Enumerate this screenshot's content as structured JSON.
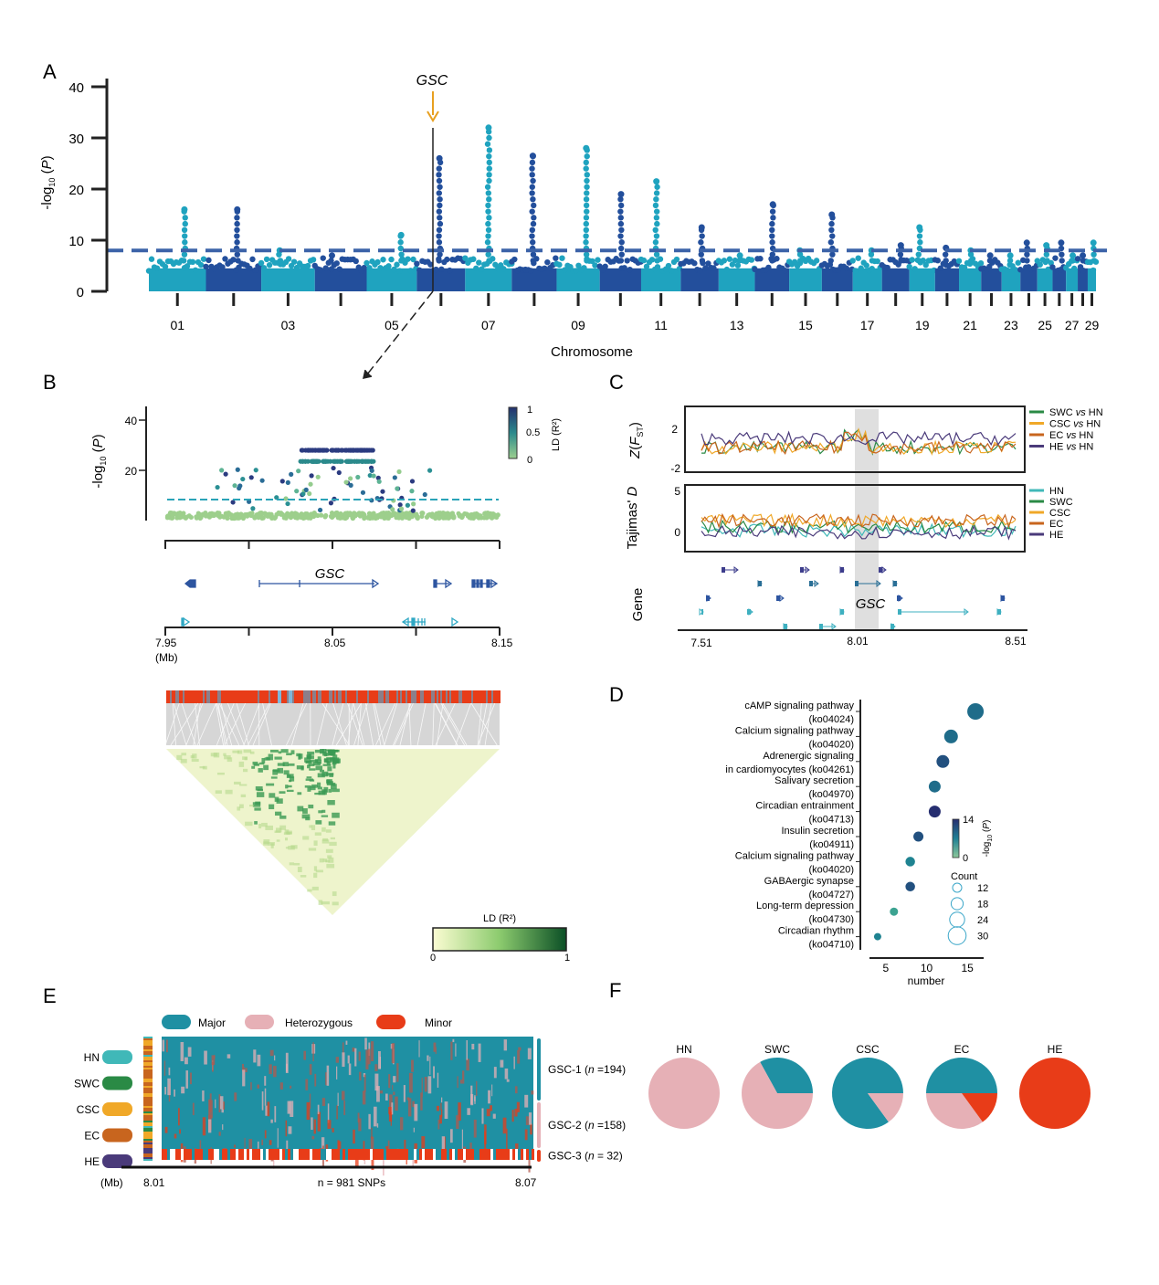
{
  "panel_labels": {
    "a": "A",
    "b": "B",
    "c": "C",
    "d": "D",
    "e": "E",
    "f": "F"
  },
  "colors": {
    "chr_light": "#1fa3bf",
    "chr_dark": "#234f9c",
    "threshold": "#3c63a8",
    "gsc_arrow": "#e8a020",
    "major": "#1f90a3",
    "heterozygous": "#e6b0b6",
    "minor": "#e83c18",
    "HN": "#40b8b8",
    "SWC": "#2a8a45",
    "CSC": "#f0a828",
    "EC": "#c8651e",
    "HE": "#4a3a7a"
  },
  "chart_data": [
    {
      "id": "A",
      "type": "scatter",
      "title": "",
      "xlabel": "Chromosome",
      "ylabel": "-log10 (P)",
      "ylim": [
        0,
        40
      ],
      "yticks": [
        0,
        10,
        20,
        30,
        40
      ],
      "xtick_labels": [
        "01",
        "03",
        "05",
        "07",
        "09",
        "11",
        "13",
        "15",
        "17",
        "19",
        "21",
        "23",
        "25",
        "27",
        "29"
      ],
      "chromosomes": 29,
      "threshold": 8,
      "annotation": "GSC",
      "peaks": [
        {
          "chr": 1,
          "max": 16
        },
        {
          "chr": 2,
          "max": 16
        },
        {
          "chr": 3,
          "max": 8
        },
        {
          "chr": 4,
          "max": 7
        },
        {
          "chr": 5,
          "max": 11
        },
        {
          "chr": 6,
          "max": 26
        },
        {
          "chr": 7,
          "max": 32
        },
        {
          "chr": 8,
          "max": 26.5
        },
        {
          "chr": 9,
          "max": 28
        },
        {
          "chr": 10,
          "max": 19
        },
        {
          "chr": 11,
          "max": 21.5
        },
        {
          "chr": 12,
          "max": 12.5
        },
        {
          "chr": 13,
          "max": 7
        },
        {
          "chr": 14,
          "max": 17
        },
        {
          "chr": 15,
          "max": 8
        },
        {
          "chr": 16,
          "max": 15
        },
        {
          "chr": 17,
          "max": 8
        },
        {
          "chr": 18,
          "max": 9
        },
        {
          "chr": 19,
          "max": 12.5
        },
        {
          "chr": 20,
          "max": 8.5
        },
        {
          "chr": 21,
          "max": 8
        },
        {
          "chr": 22,
          "max": 7
        },
        {
          "chr": 23,
          "max": 7
        },
        {
          "chr": 24,
          "max": 9.5
        },
        {
          "chr": 25,
          "max": 9
        },
        {
          "chr": 26,
          "max": 9.5
        },
        {
          "chr": 27,
          "max": 7
        },
        {
          "chr": 28,
          "max": 7
        },
        {
          "chr": 29,
          "max": 9.5
        }
      ]
    },
    {
      "id": "B",
      "type": "scatter",
      "ylabel": "-log10 (P)",
      "xlabel": "(Mb)",
      "xlim": [
        7.95,
        8.15
      ],
      "ylim": [
        0,
        45
      ],
      "yticks": [
        20,
        40
      ],
      "xtick_labels": [
        "7.95",
        "8.05",
        "8.15"
      ],
      "threshold": 8,
      "colorbar": {
        "label": "LD (R²)",
        "ticks": [
          "1",
          "0.5",
          "0"
        ]
      },
      "gene_label": "GSC",
      "ld_legend": {
        "label": "LD (R²)",
        "min": "0",
        "max": "1"
      }
    },
    {
      "id": "C",
      "type": "line",
      "panels": [
        {
          "ylabel": "Z(FST)",
          "yticks": [
            "2",
            "-2"
          ],
          "legend": [
            "SWC vs HN",
            "CSC vs HN",
            "EC vs HN",
            "HE vs HN"
          ]
        },
        {
          "ylabel": "Tajimas' D",
          "yticks": [
            "5",
            "0"
          ],
          "legend": [
            "HN",
            "SWC",
            "CSC",
            "EC",
            "HE"
          ]
        },
        {
          "ylabel": "Gene",
          "gene_label": "GSC"
        }
      ],
      "xlim": [
        7.51,
        8.51
      ],
      "xtick_labels": [
        "7.51",
        "8.01",
        "8.51"
      ],
      "highlight": [
        8.01,
        8.08
      ]
    },
    {
      "id": "D",
      "type": "scatter",
      "xlabel": "number",
      "xticks": [
        5,
        10,
        15
      ],
      "categories": [
        "cAMP signaling pathway (ko04024)",
        "Calcium signaling pathway (ko04020)",
        "Adrenergic signaling in cardiomyocytes (ko04261)",
        "Salivary secretion (ko04970)",
        "Circadian entrainment (ko04713)",
        "Insulin secretion (ko04911)",
        "Calcium signaling pathway (ko04020)",
        "GABAergic synapse (ko04727)",
        "Long-term depression (ko04730)",
        "Circadian rhythm (ko04710)"
      ],
      "label_lines": [
        [
          "cAMP signaling pathway",
          "(ko04024)"
        ],
        [
          "Calcium signaling pathway",
          "(ko04020)"
        ],
        [
          "Adrenergic signaling",
          "in cardiomyocytes (ko04261)"
        ],
        [
          "Salivary secretion",
          "(ko04970)"
        ],
        [
          "Circadian entrainment",
          "(ko04713)"
        ],
        [
          "Insulin secretion",
          "(ko04911)"
        ],
        [
          "Calcium signaling pathway",
          "(ko04020)"
        ],
        [
          "GABAergic synapse",
          "(ko04727)"
        ],
        [
          "Long-term depression",
          "(ko04730)"
        ],
        [
          "Circadian rhythm",
          "(ko04710)"
        ]
      ],
      "number": [
        16,
        13,
        12,
        11,
        11,
        9,
        8,
        8,
        6,
        4
      ],
      "neglog10p": [
        9,
        10,
        12,
        9,
        14,
        11,
        7,
        12,
        6,
        7
      ],
      "count": [
        30,
        24,
        22,
        20,
        20,
        16,
        15,
        15,
        12,
        10
      ],
      "colorbar": {
        "label": "-log10 (P)",
        "min": "0",
        "max": "14"
      },
      "size_legend": {
        "title": "Count",
        "values": [
          12,
          18,
          24,
          30
        ]
      }
    },
    {
      "id": "E",
      "type": "heatmap",
      "legend": [
        "Major",
        "Heterozygous",
        "Minor"
      ],
      "populations": [
        "HN",
        "SWC",
        "CSC",
        "EC",
        "HE"
      ],
      "groups": [
        {
          "name": "GSC-1",
          "n": 194,
          "label": "GSC-1 (n =194)"
        },
        {
          "name": "GSC-2",
          "n": 158,
          "label": "GSC-2 (n =158)"
        },
        {
          "name": "GSC-3",
          "n": 32,
          "label": "GSC-3 (n = 32)"
        }
      ],
      "x_unit": "(Mb)",
      "x_start": "8.01",
      "x_end": "8.07",
      "snp_label": "n = 981 SNPs"
    },
    {
      "id": "F",
      "type": "pie",
      "pies": [
        {
          "label": "HN",
          "values": {
            "major": 0,
            "heterozygous": 100,
            "minor": 0
          }
        },
        {
          "label": "SWC",
          "values": {
            "major": 33,
            "heterozygous": 67,
            "minor": 0
          }
        },
        {
          "label": "CSC",
          "values": {
            "major": 85,
            "heterozygous": 15,
            "minor": 0
          }
        },
        {
          "label": "EC",
          "values": {
            "major": 50,
            "heterozygous": 35,
            "minor": 15
          }
        },
        {
          "label": "HE",
          "values": {
            "major": 0,
            "heterozygous": 0,
            "minor": 100
          }
        }
      ]
    }
  ]
}
